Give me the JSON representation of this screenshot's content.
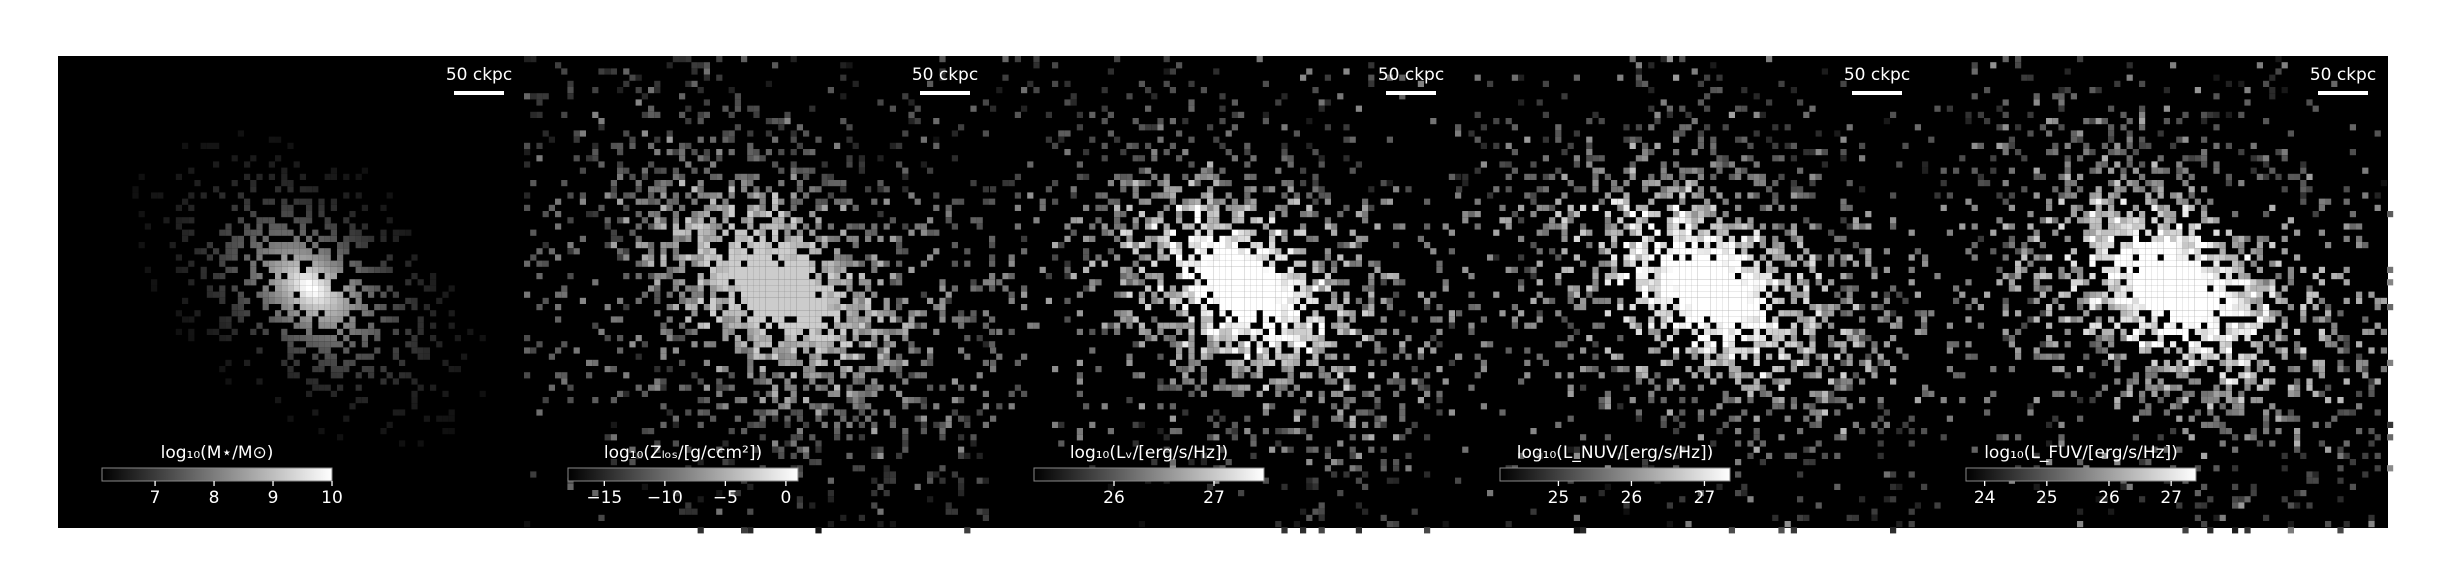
{
  "panels": [
    {
      "scale_label": "50 ckpc",
      "colorbar": {
        "label": "log₁₀(M⋆/M⊙)",
        "lim": [
          6.1,
          10.0
        ],
        "ticks": [
          7,
          8,
          9,
          10
        ]
      }
    },
    {
      "scale_label": "50 ckpc",
      "colorbar": {
        "label": "log₁₀(Zₗₒₛ/[g/ccm²])",
        "lim": [
          -18,
          1
        ],
        "ticks": [
          {
            "value": -15,
            "label": "−15"
          },
          {
            "value": -10,
            "label": "−10"
          },
          {
            "value": -5,
            "label": "−5"
          },
          0
        ]
      }
    },
    {
      "scale_label": "50 ckpc",
      "colorbar": {
        "label": "log₁₀(Lᵥ/[erg/s/Hz])",
        "lim": [
          25.2,
          27.5
        ],
        "ticks": [
          26,
          27
        ]
      }
    },
    {
      "scale_label": "50 ckpc",
      "colorbar": {
        "label": "log₁₀(L_NUV/[erg/s/Hz])",
        "lim": [
          24.2,
          27.35
        ],
        "ticks": [
          25,
          26,
          27
        ]
      }
    },
    {
      "scale_label": "50 ckpc",
      "colorbar": {
        "label": "log₁₀(L_FUV/[erg/s/Hz])",
        "lim": [
          23.7,
          27.4
        ],
        "ticks": [
          24,
          25,
          26,
          27
        ]
      }
    }
  ]
}
